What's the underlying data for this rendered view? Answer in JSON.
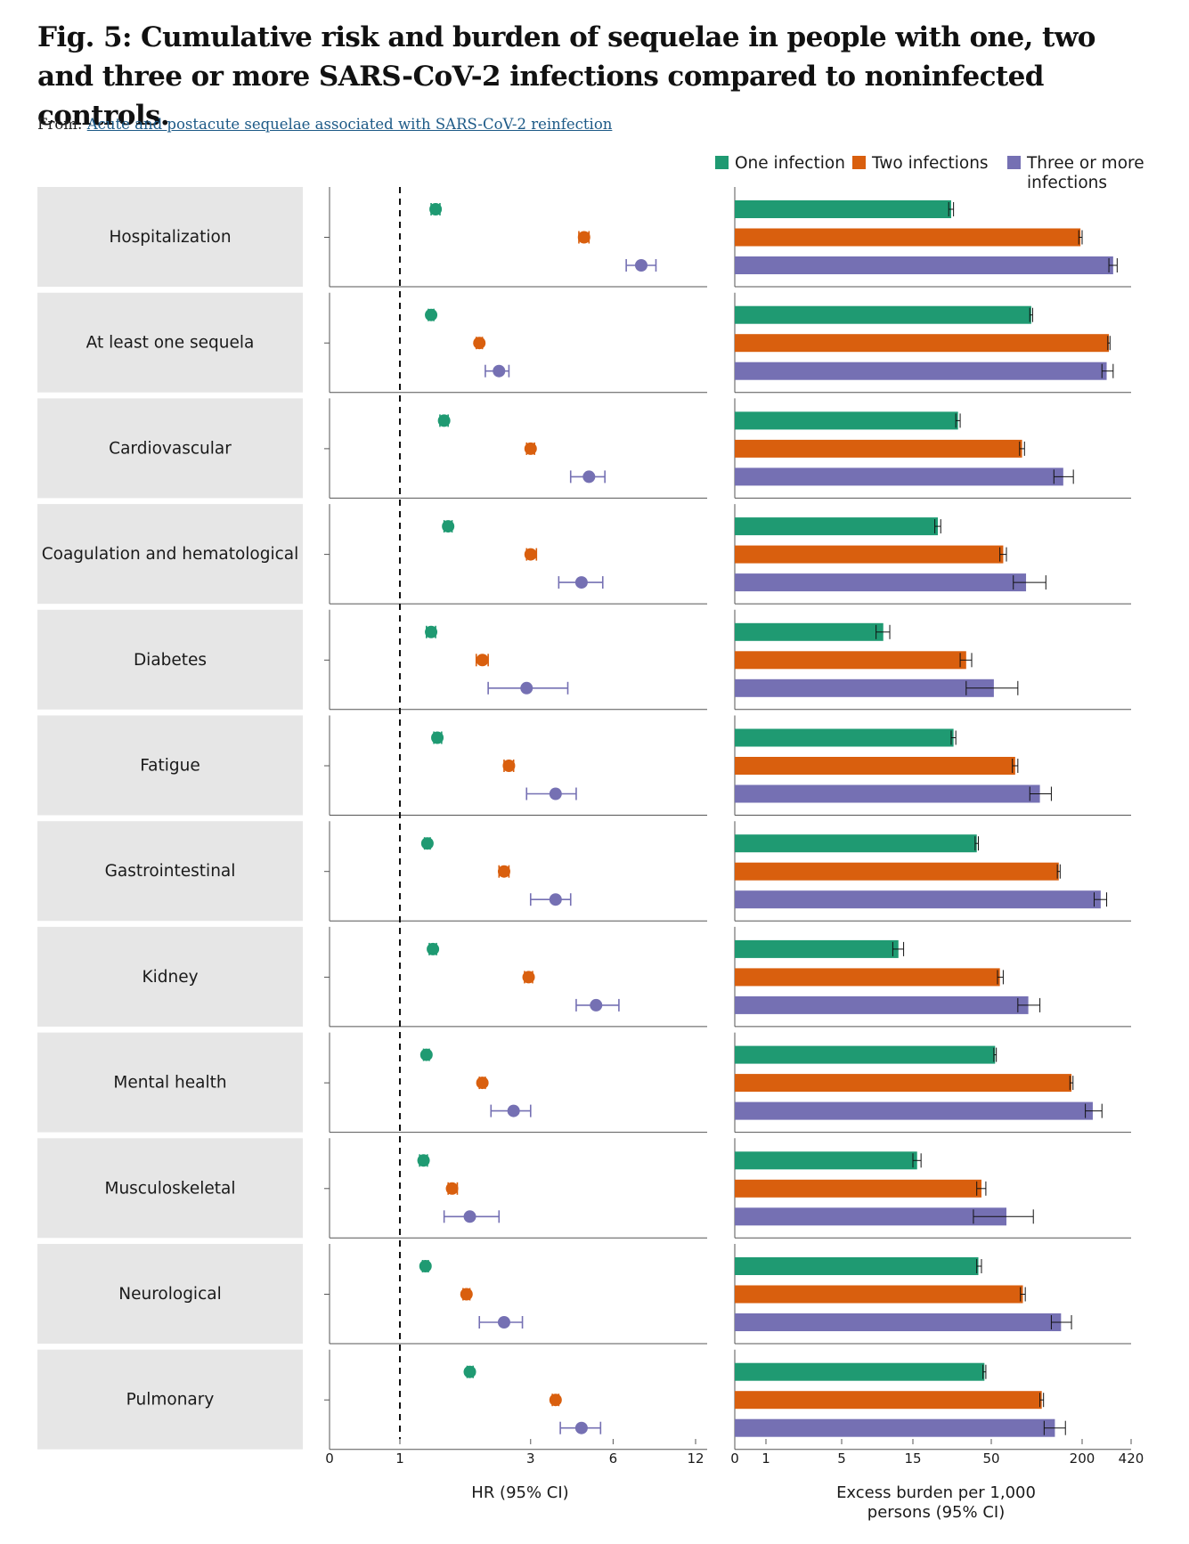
{
  "figure": {
    "title": "Fig. 5: Cumulative risk and burden of sequelae in people with one, two and three or more SARS-CoV-2 infections compared to noninfected controls.",
    "from_prefix": "From:",
    "from_link": "Acute and postacute sequelae associated with SARS-CoV-2 reinfection"
  },
  "colors": {
    "one": "#1f9a72",
    "two": "#d95f0e",
    "three": "#7570b3",
    "label_bg": "#e6e6e6"
  },
  "legend": {
    "one": "One infection",
    "two": "Two infections",
    "three_line1": "Three or more",
    "three_line2": "infections"
  },
  "chart_data": [
    {
      "type": "scatter",
      "panel": "hazard-ratio",
      "title": "",
      "xlabel": "HR (95% CI)",
      "x_scale": "log",
      "xlim": [
        0,
        12
      ],
      "x_ticks": [
        "0",
        "1",
        "3",
        "6",
        "12"
      ],
      "x_tick_values": [
        0,
        1,
        3,
        6,
        12
      ],
      "reference_line": 1,
      "series": [
        {
          "name": "One infection",
          "color": "#1f9a72"
        },
        {
          "name": "Two infections",
          "color": "#d95f0e"
        },
        {
          "name": "Three or more infections",
          "color": "#7570b3"
        }
      ],
      "categories": [
        "Hospitalization",
        "At least one sequela",
        "Cardiovascular",
        "Coagulation and hematological",
        "Diabetes",
        "Fatigue",
        "Gastrointestinal",
        "Kidney",
        "Mental health",
        "Musculoskeletal",
        "Neurological",
        "Pulmonary"
      ],
      "values": [
        [
          [
            1.35,
            1.3,
            1.4
          ],
          [
            4.7,
            4.5,
            4.9
          ],
          [
            7.6,
            6.7,
            8.6
          ]
        ],
        [
          [
            1.3,
            1.27,
            1.33
          ],
          [
            1.95,
            1.9,
            2.0
          ],
          [
            2.3,
            2.05,
            2.5
          ]
        ],
        [
          [
            1.45,
            1.4,
            1.5
          ],
          [
            3.0,
            2.9,
            3.1
          ],
          [
            4.9,
            4.2,
            5.6
          ]
        ],
        [
          [
            1.5,
            1.45,
            1.55
          ],
          [
            3.0,
            2.9,
            3.15
          ],
          [
            4.6,
            3.8,
            5.5
          ]
        ],
        [
          [
            1.3,
            1.25,
            1.35
          ],
          [
            2.0,
            1.9,
            2.1
          ],
          [
            2.9,
            2.1,
            4.1
          ]
        ],
        [
          [
            1.37,
            1.33,
            1.42
          ],
          [
            2.5,
            2.4,
            2.6
          ],
          [
            3.7,
            2.9,
            4.4
          ]
        ],
        [
          [
            1.26,
            1.23,
            1.29
          ],
          [
            2.4,
            2.3,
            2.5
          ],
          [
            3.7,
            3.0,
            4.2
          ]
        ],
        [
          [
            1.32,
            1.28,
            1.36
          ],
          [
            2.95,
            2.85,
            3.05
          ],
          [
            5.2,
            4.4,
            6.3
          ]
        ],
        [
          [
            1.25,
            1.22,
            1.28
          ],
          [
            2.0,
            1.95,
            2.05
          ],
          [
            2.6,
            2.15,
            3.0
          ]
        ],
        [
          [
            1.22,
            1.18,
            1.26
          ],
          [
            1.55,
            1.5,
            1.62
          ],
          [
            1.8,
            1.45,
            2.3
          ]
        ],
        [
          [
            1.24,
            1.21,
            1.27
          ],
          [
            1.75,
            1.7,
            1.8
          ],
          [
            2.4,
            1.95,
            2.8
          ]
        ],
        [
          [
            1.8,
            1.76,
            1.85
          ],
          [
            3.7,
            3.6,
            3.8
          ],
          [
            4.6,
            3.85,
            5.4
          ]
        ]
      ]
    },
    {
      "type": "bar",
      "panel": "excess-burden",
      "title": "",
      "xlabel_line1": "Excess burden per 1,000",
      "xlabel_line2": "persons (95% CI)",
      "x_scale": "custom-log",
      "xlim": [
        0,
        420
      ],
      "x_ticks": [
        "0",
        "1",
        "5",
        "15",
        "50",
        "200",
        "420"
      ],
      "x_tick_values": [
        0,
        1,
        5,
        15,
        50,
        200,
        420
      ],
      "series": [
        {
          "name": "One infection",
          "color": "#1f9a72"
        },
        {
          "name": "Two infections",
          "color": "#d95f0e"
        },
        {
          "name": "Three or more infections",
          "color": "#7570b3"
        }
      ],
      "categories": [
        "Hospitalization",
        "At least one sequela",
        "Cardiovascular",
        "Coagulation and hematological",
        "Diabetes",
        "Fatigue",
        "Gastrointestinal",
        "Kidney",
        "Mental health",
        "Musculoskeletal",
        "Neurological",
        "Pulmonary"
      ],
      "values": [
        [
          [
            27,
            26,
            28
          ],
          [
            195,
            190,
            200
          ],
          [
            320,
            300,
            340
          ]
        ],
        [
          [
            92,
            90,
            94
          ],
          [
            300,
            295,
            305
          ],
          [
            290,
            270,
            320
          ]
        ],
        [
          [
            30,
            29,
            31
          ],
          [
            80,
            77,
            83
          ],
          [
            150,
            130,
            175
          ]
        ],
        [
          [
            22,
            21,
            23
          ],
          [
            60,
            57,
            63
          ],
          [
            85,
            70,
            115
          ]
        ],
        [
          [
            9.5,
            8.5,
            10.5
          ],
          [
            34,
            31,
            37
          ],
          [
            52,
            34,
            75
          ]
        ],
        [
          [
            28,
            27,
            29
          ],
          [
            72,
            69,
            75
          ],
          [
            105,
            90,
            125
          ]
        ],
        [
          [
            40,
            39,
            41
          ],
          [
            140,
            137,
            143
          ],
          [
            265,
            240,
            290
          ]
        ],
        [
          [
            12,
            11,
            13
          ],
          [
            57,
            55,
            60
          ],
          [
            88,
            75,
            105
          ]
        ],
        [
          [
            53,
            52,
            54
          ],
          [
            170,
            166,
            174
          ],
          [
            235,
            210,
            270
          ]
        ],
        [
          [
            16,
            15,
            17
          ],
          [
            43,
            40,
            46
          ],
          [
            63,
            38,
            95
          ]
        ],
        [
          [
            41,
            40,
            43
          ],
          [
            81,
            78,
            84
          ],
          [
            145,
            125,
            170
          ]
        ],
        [
          [
            45,
            44,
            46
          ],
          [
            108,
            105,
            111
          ],
          [
            132,
            112,
            155
          ]
        ]
      ]
    }
  ]
}
